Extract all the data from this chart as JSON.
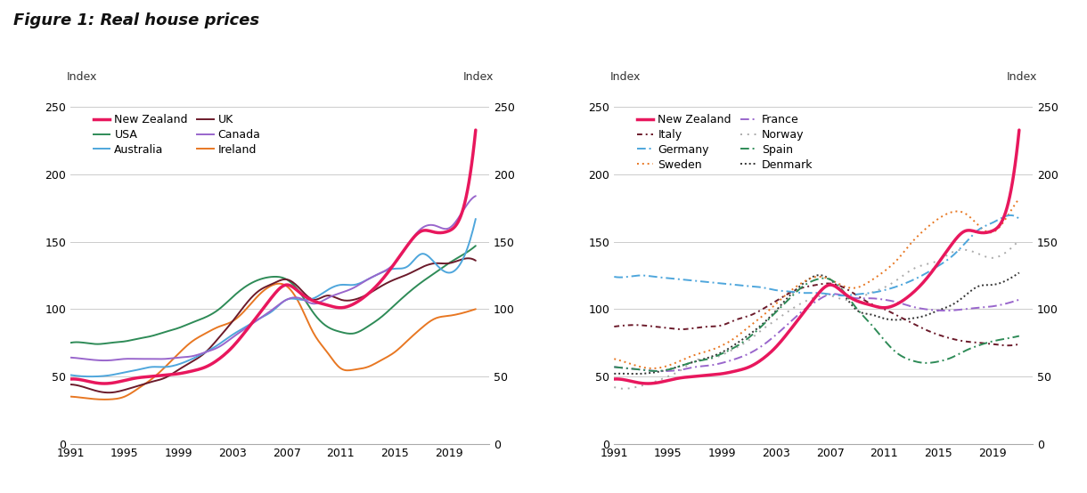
{
  "title": "Figure 1: Real house prices",
  "years": [
    1991,
    1992,
    1993,
    1994,
    1995,
    1996,
    1997,
    1998,
    1999,
    2000,
    2001,
    2002,
    2003,
    2004,
    2005,
    2006,
    2007,
    2008,
    2009,
    2010,
    2011,
    2012,
    2013,
    2014,
    2015,
    2016,
    2017,
    2018,
    2019,
    2020,
    2021
  ],
  "panel1": {
    "New Zealand": [
      48,
      47,
      45,
      45,
      47,
      49,
      50,
      51,
      52,
      54,
      57,
      63,
      72,
      84,
      97,
      110,
      118,
      112,
      106,
      103,
      101,
      104,
      111,
      121,
      134,
      148,
      158,
      157,
      158,
      172,
      233
    ],
    "Australia": [
      51,
      50,
      50,
      51,
      53,
      55,
      57,
      57,
      59,
      63,
      68,
      74,
      81,
      87,
      93,
      99,
      107,
      107,
      108,
      114,
      118,
      118,
      122,
      127,
      130,
      132,
      141,
      134,
      127,
      136,
      167
    ],
    "Canada": [
      64,
      63,
      62,
      62,
      63,
      63,
      63,
      63,
      64,
      65,
      68,
      72,
      79,
      86,
      93,
      100,
      107,
      108,
      104,
      108,
      112,
      116,
      122,
      127,
      134,
      148,
      160,
      162,
      160,
      172,
      184
    ],
    "USA": [
      75,
      75,
      74,
      75,
      76,
      78,
      80,
      83,
      86,
      90,
      94,
      100,
      109,
      117,
      122,
      124,
      122,
      112,
      97,
      87,
      83,
      82,
      87,
      94,
      103,
      112,
      120,
      127,
      134,
      140,
      147
    ],
    "UK": [
      44,
      42,
      39,
      38,
      40,
      43,
      46,
      49,
      55,
      61,
      68,
      79,
      91,
      104,
      114,
      119,
      122,
      115,
      107,
      110,
      107,
      107,
      111,
      117,
      122,
      126,
      131,
      134,
      134,
      137,
      136
    ],
    "Ireland": [
      35,
      34,
      33,
      33,
      35,
      41,
      48,
      57,
      67,
      76,
      82,
      87,
      91,
      100,
      111,
      118,
      117,
      103,
      82,
      68,
      56,
      55,
      57,
      62,
      68,
      77,
      86,
      93,
      95,
      97,
      100
    ]
  },
  "panel2": {
    "New Zealand": [
      48,
      47,
      45,
      45,
      47,
      49,
      50,
      51,
      52,
      54,
      57,
      63,
      72,
      84,
      97,
      110,
      118,
      112,
      106,
      103,
      101,
      104,
      111,
      121,
      134,
      148,
      158,
      157,
      158,
      172,
      233
    ],
    "Germany": [
      124,
      124,
      125,
      124,
      123,
      122,
      121,
      120,
      119,
      118,
      117,
      116,
      114,
      113,
      112,
      112,
      111,
      110,
      111,
      112,
      114,
      117,
      121,
      126,
      132,
      139,
      149,
      159,
      164,
      169,
      167
    ],
    "France": [
      57,
      56,
      55,
      54,
      54,
      55,
      57,
      58,
      60,
      63,
      67,
      73,
      81,
      90,
      99,
      106,
      111,
      110,
      108,
      108,
      107,
      105,
      102,
      100,
      99,
      99,
      100,
      101,
      102,
      104,
      107
    ],
    "Spain": [
      57,
      56,
      55,
      54,
      55,
      58,
      61,
      63,
      67,
      72,
      79,
      88,
      98,
      108,
      117,
      122,
      122,
      113,
      100,
      89,
      77,
      67,
      62,
      60,
      61,
      64,
      69,
      73,
      76,
      78,
      80
    ],
    "Italy": [
      87,
      88,
      88,
      87,
      86,
      85,
      86,
      87,
      88,
      92,
      95,
      100,
      106,
      112,
      116,
      118,
      119,
      116,
      110,
      104,
      100,
      95,
      90,
      85,
      81,
      78,
      76,
      75,
      74,
      73,
      74
    ],
    "Sweden": [
      63,
      60,
      57,
      56,
      58,
      62,
      66,
      69,
      73,
      79,
      87,
      95,
      104,
      113,
      120,
      124,
      122,
      117,
      116,
      121,
      128,
      137,
      149,
      159,
      167,
      172,
      171,
      162,
      157,
      167,
      182
    ],
    "Norway": [
      42,
      41,
      43,
      46,
      50,
      55,
      62,
      63,
      66,
      71,
      77,
      85,
      92,
      99,
      105,
      109,
      110,
      107,
      108,
      112,
      116,
      122,
      129,
      133,
      136,
      142,
      144,
      141,
      138,
      142,
      151
    ],
    "Denmark": [
      52,
      52,
      52,
      53,
      55,
      58,
      61,
      64,
      68,
      74,
      81,
      89,
      99,
      110,
      119,
      125,
      122,
      111,
      99,
      96,
      93,
      92,
      93,
      95,
      99,
      103,
      110,
      117,
      118,
      121,
      127
    ]
  },
  "colors_p1": {
    "New Zealand": "#e8175d",
    "Australia": "#4ea6dc",
    "Canada": "#9966cc",
    "USA": "#2e8b57",
    "UK": "#6b1a2a",
    "Ireland": "#e87722"
  },
  "colors_p2": {
    "New Zealand": "#e8175d",
    "Germany": "#4ea6dc",
    "France": "#9966cc",
    "Spain": "#2e8b57",
    "Italy": "#6b1a2a",
    "Sweden": "#e87722",
    "Norway": "#aaaaaa",
    "Denmark": "#333333"
  },
  "linestyles_p2": {
    "New Zealand": "solid",
    "Germany": "dashdot",
    "France": "dashdot",
    "Spain": "dashdot",
    "Italy": "dashdot",
    "Sweden": "dotted",
    "Norway": "dotted",
    "Denmark": "dotted"
  },
  "ylim": [
    0,
    260
  ],
  "yticks": [
    0,
    50,
    100,
    150,
    200,
    250
  ],
  "xticks": [
    1991,
    1995,
    1999,
    2003,
    2007,
    2011,
    2015,
    2019
  ],
  "xlabel_labels": [
    "1991",
    "1995",
    "1999",
    "2003",
    "2007",
    "2011",
    "2015",
    "2019"
  ],
  "ylabel_label": "Index",
  "background_color": "#ffffff",
  "grid_color": "#cccccc",
  "title_fontsize": 13,
  "axis_fontsize": 9,
  "legend_fontsize": 9,
  "lw_nz": 2.5,
  "lw_other": 1.4
}
